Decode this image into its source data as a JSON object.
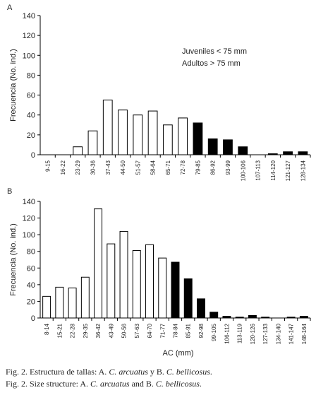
{
  "chart_data": [
    {
      "type": "bar",
      "panel": "A",
      "ylabel": "Frecuencia (No. ind.)",
      "annotations": [
        "Juveniles < 75 mm",
        "Adultos > 75 mm"
      ],
      "categories": [
        "9-15",
        "16-22",
        "23-29",
        "30-36",
        "37-43",
        "44-50",
        "51-57",
        "58-64",
        "65-71",
        "72-78",
        "79-85",
        "86-92",
        "93-99",
        "100-106",
        "107-113",
        "114-120",
        "121-127",
        "128-134"
      ],
      "values": [
        0,
        0,
        8,
        24,
        55,
        45,
        40,
        44,
        30,
        37,
        32,
        16,
        15,
        8,
        0,
        1,
        3,
        3
      ],
      "colors": [
        "#ffffff",
        "#ffffff",
        "#ffffff",
        "#ffffff",
        "#ffffff",
        "#ffffff",
        "#ffffff",
        "#ffffff",
        "#ffffff",
        "#ffffff",
        "#000000",
        "#000000",
        "#000000",
        "#000000",
        "#000000",
        "#000000",
        "#000000",
        "#000000"
      ],
      "ylim": [
        0,
        140
      ],
      "yticks": [
        0,
        20,
        40,
        60,
        80,
        100,
        120,
        140
      ]
    },
    {
      "type": "bar",
      "panel": "B",
      "ylabel": "Frecuencia (No. ind.)",
      "xlabel": "AC (mm)",
      "categories": [
        "8-14",
        "15-21",
        "22-28",
        "29-35",
        "36-42",
        "43-49",
        "50-56",
        "57-63",
        "64-70",
        "71-77",
        "78-84",
        "85-91",
        "92-98",
        "99-105",
        "106-112",
        "113-119",
        "120-126",
        "127-133",
        "134-140",
        "141-147",
        "148-164"
      ],
      "values": [
        26,
        37,
        36,
        49,
        131,
        89,
        104,
        81,
        88,
        72,
        67,
        47,
        23,
        7,
        2,
        1,
        3,
        1,
        0,
        1,
        2
      ],
      "colors": [
        "#ffffff",
        "#ffffff",
        "#ffffff",
        "#ffffff",
        "#ffffff",
        "#ffffff",
        "#ffffff",
        "#ffffff",
        "#ffffff",
        "#ffffff",
        "#000000",
        "#000000",
        "#000000",
        "#000000",
        "#000000",
        "#000000",
        "#000000",
        "#000000",
        "#000000",
        "#000000",
        "#000000"
      ],
      "ylim": [
        0,
        140
      ],
      "yticks": [
        0,
        20,
        40,
        60,
        80,
        100,
        120,
        140
      ]
    }
  ],
  "caption": [
    [
      "Fig. 2. Estructura de tallas: A. ",
      "C. arcuatus",
      " y B. ",
      "C. bellicosus",
      "."
    ],
    [
      "Fig. 2. Size structure: A. ",
      "C. arcuatus",
      " and B. ",
      "C. bellicosus",
      "."
    ]
  ]
}
